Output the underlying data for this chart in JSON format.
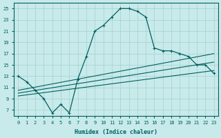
{
  "xlabel": "Humidex (Indice chaleur)",
  "bg_color": "#c8eaea",
  "grid_color": "#aad4d4",
  "line_color": "#005f5f",
  "xlim": [
    -0.5,
    23.5
  ],
  "ylim": [
    6,
    26
  ],
  "yticks": [
    7,
    9,
    11,
    13,
    15,
    17,
    19,
    21,
    23,
    25
  ],
  "xticks": [
    0,
    1,
    2,
    3,
    4,
    5,
    6,
    7,
    8,
    9,
    10,
    11,
    12,
    13,
    14,
    15,
    16,
    17,
    18,
    19,
    20,
    21,
    22,
    23
  ],
  "curve_x": [
    0,
    1,
    2,
    3,
    4,
    5,
    6,
    7,
    8,
    9,
    10,
    11,
    12,
    13,
    14,
    15,
    16,
    17,
    18,
    19,
    20,
    21,
    22,
    23
  ],
  "curve_y": [
    13,
    12,
    10.5,
    9.0,
    6.5,
    8.0,
    6.5,
    12.5,
    16.5,
    21.0,
    22.0,
    23.5,
    25.0,
    25.0,
    24.5,
    23.5,
    18.0,
    17.5,
    17.5,
    17.0,
    16.5,
    15.0,
    15.0,
    13.5
  ],
  "line1_x": [
    0,
    23
  ],
  "line1_y": [
    10.5,
    17.0
  ],
  "line2_x": [
    0,
    23
  ],
  "line2_y": [
    10.0,
    15.5
  ],
  "line3_x": [
    0,
    23
  ],
  "line3_y": [
    9.5,
    14.0
  ],
  "tick_fontsize": 5,
  "xlabel_fontsize": 6
}
